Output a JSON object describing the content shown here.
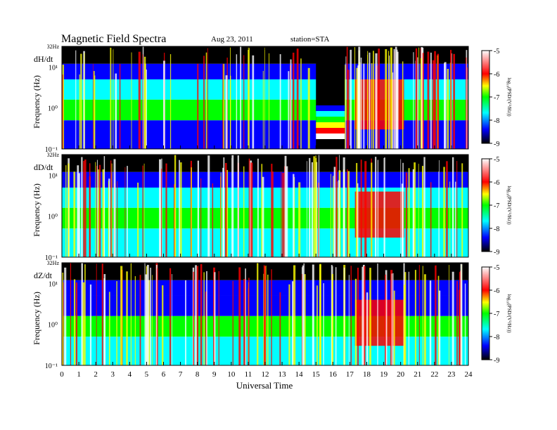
{
  "title": "Magnetic Field Spectra",
  "date": "Aug 23, 2011",
  "station": "station=STA",
  "xlabel": "Universal Time",
  "colors": {
    "low": "#000000",
    "blue": "#0000ff",
    "cyan": "#00ffff",
    "green": "#00ff00",
    "yellow": "#ffff00",
    "red": "#ff0000",
    "high": "#ffffff"
  },
  "chart_data": [
    {
      "type": "heatmap",
      "component": "dH/dt",
      "ylabel": "Frequency (Hz)",
      "y_ticks": [
        "32Hz",
        "10¹",
        "10⁰",
        "10⁻¹"
      ],
      "y_scale": "log",
      "ylim": [
        0.1,
        32
      ],
      "xlim": [
        0,
        24
      ],
      "colorbar": {
        "label": "log₁₀(PSD/(V²/Hz))",
        "ticks": [
          "-5",
          "-6",
          "-7",
          "-8",
          "-9"
        ],
        "range": [
          -9,
          -5
        ]
      },
      "gap_hours": [
        15.0,
        16.7
      ]
    },
    {
      "type": "heatmap",
      "component": "dD/dt",
      "ylabel": "Frequency (Hz)",
      "y_ticks": [
        "32Hz",
        "10¹",
        "10⁰",
        "10⁻¹"
      ],
      "y_scale": "log",
      "ylim": [
        0.1,
        32
      ],
      "xlim": [
        0,
        24
      ],
      "colorbar": {
        "label": "log₁₀(PSD/(V²/Hz))",
        "ticks": [
          "-5",
          "-6",
          "-7",
          "-8",
          "-9"
        ],
        "range": [
          -9,
          -5
        ]
      }
    },
    {
      "type": "heatmap",
      "component": "dZ/dt",
      "ylabel": "Frequency (Hz)",
      "y_ticks": [
        "32Hz",
        "10¹",
        "10⁰",
        "10⁻¹"
      ],
      "y_scale": "log",
      "ylim": [
        0.1,
        32
      ],
      "xlim": [
        0,
        24
      ],
      "colorbar": {
        "label": "log₁₀(PSD/(V²/Hz))",
        "ticks": [
          "-5",
          "-6",
          "-7",
          "-8",
          "-9"
        ],
        "range": [
          -9,
          -5
        ]
      }
    }
  ],
  "x_ticks": [
    "0",
    "1",
    "2",
    "3",
    "4",
    "5",
    "6",
    "7",
    "8",
    "9",
    "10",
    "11",
    "12",
    "13",
    "14",
    "15",
    "16",
    "17",
    "18",
    "19",
    "20",
    "21",
    "22",
    "23",
    "24"
  ]
}
